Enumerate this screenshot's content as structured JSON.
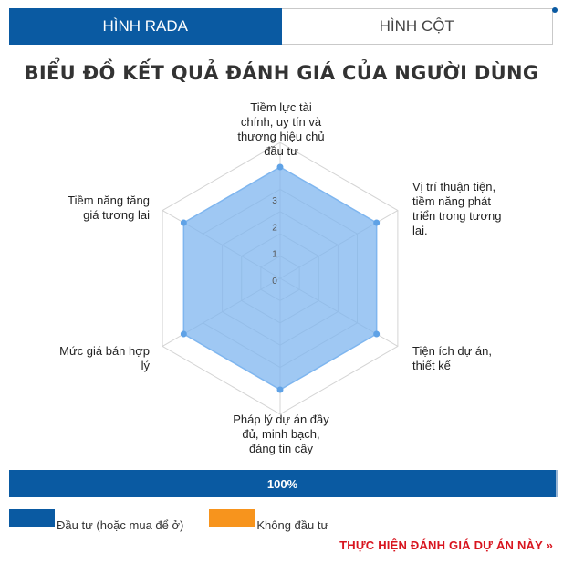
{
  "tabs": [
    {
      "label": "HÌNH RADA",
      "active": true
    },
    {
      "label": "HÌNH CỘT",
      "active": false
    }
  ],
  "chart_data": {
    "type": "radar",
    "title": "BIỂU ĐỒ KẾT QUẢ ĐÁNH GIÁ CỦA NGƯỜI DÙNG",
    "axes": [
      "Tiềm lực tài chính, uy tín và thương hiệu chủ đầu tư",
      "Vị trí thuận tiện, tiềm năng phát triển trong tương lai.",
      "Tiện ích dự án, thiết kế",
      "Pháp lý dự án đầy đủ, minh bạch, đáng tin cậy",
      "Mức giá bán hợp lý",
      "Tiềm năng tăng giá tương lai"
    ],
    "scale_ticks": [
      "0",
      "1",
      "2",
      "3"
    ],
    "range": [
      0,
      4
    ],
    "series": [
      {
        "values": [
          4,
          4,
          4,
          4,
          4,
          4
        ],
        "color": "#7fb6ef"
      }
    ]
  },
  "progress": {
    "label": "100%",
    "value": 1.0
  },
  "legend": [
    {
      "label": "Đầu tư (hoặc mua để ở)",
      "color": "#0a5aa2"
    },
    {
      "label": "Không đầu tư",
      "color": "#f7941d"
    }
  ],
  "cta": {
    "label": "THỰC HIỆN ĐÁNH GIÁ DỰ ÁN NÀY »"
  }
}
